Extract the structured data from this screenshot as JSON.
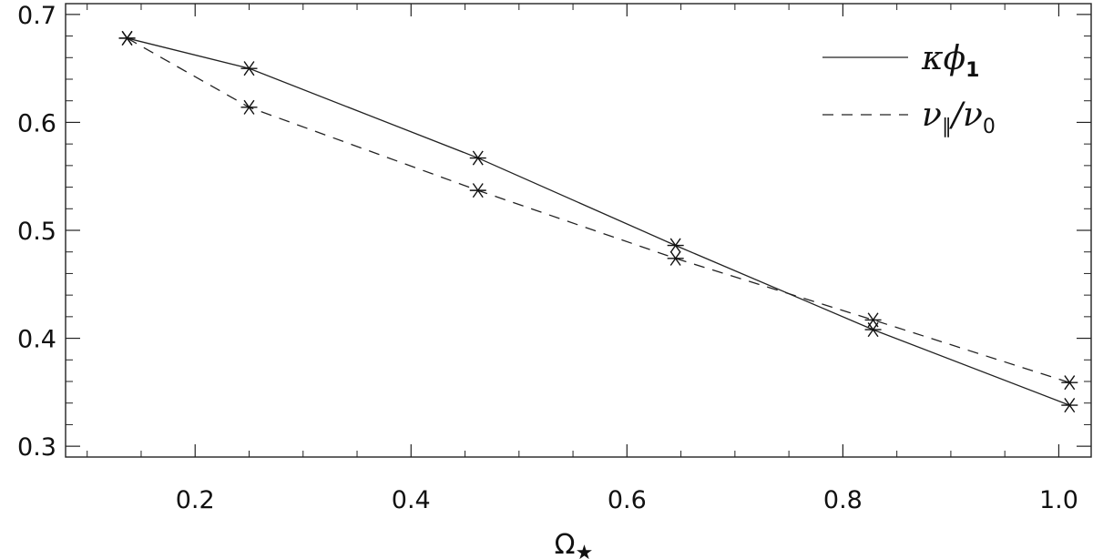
{
  "chart_data": {
    "type": "line",
    "title": "",
    "xlabel": "Ω",
    "xlabel_subscript": "★",
    "ylabel": "",
    "xlim": [
      0.08,
      1.03
    ],
    "ylim": [
      0.29,
      0.71
    ],
    "grid": false,
    "legend_position": "top-right",
    "x_ticks": [
      0.2,
      0.4,
      0.6,
      0.8,
      1.0
    ],
    "x_tick_labels": [
      "0.2",
      "0.4",
      "0.6",
      "0.8",
      "1.0"
    ],
    "y_ticks": [
      0.3,
      0.4,
      0.5,
      0.6,
      0.7
    ],
    "y_tick_labels": [
      "0.3",
      "0.4",
      "0.5",
      "0.6",
      "0.7"
    ],
    "x": [
      0.137,
      0.25,
      0.462,
      0.645,
      0.828,
      1.01
    ],
    "series": [
      {
        "name": "κϕ₁",
        "legend": {
          "main": "κϕ",
          "sub": "1"
        },
        "style": "solid",
        "marker": "asterisk",
        "values": [
          0.678,
          0.65,
          0.567,
          0.486,
          0.408,
          0.338
        ]
      },
      {
        "name": "ν∥/ν₀",
        "legend": {
          "main1": "ν",
          "sub1": "∥",
          "sep": "/",
          "main2": "ν",
          "sub2": "0"
        },
        "style": "dashed",
        "marker": "asterisk",
        "values": [
          0.678,
          0.614,
          0.537,
          0.474,
          0.417,
          0.359
        ]
      }
    ]
  }
}
